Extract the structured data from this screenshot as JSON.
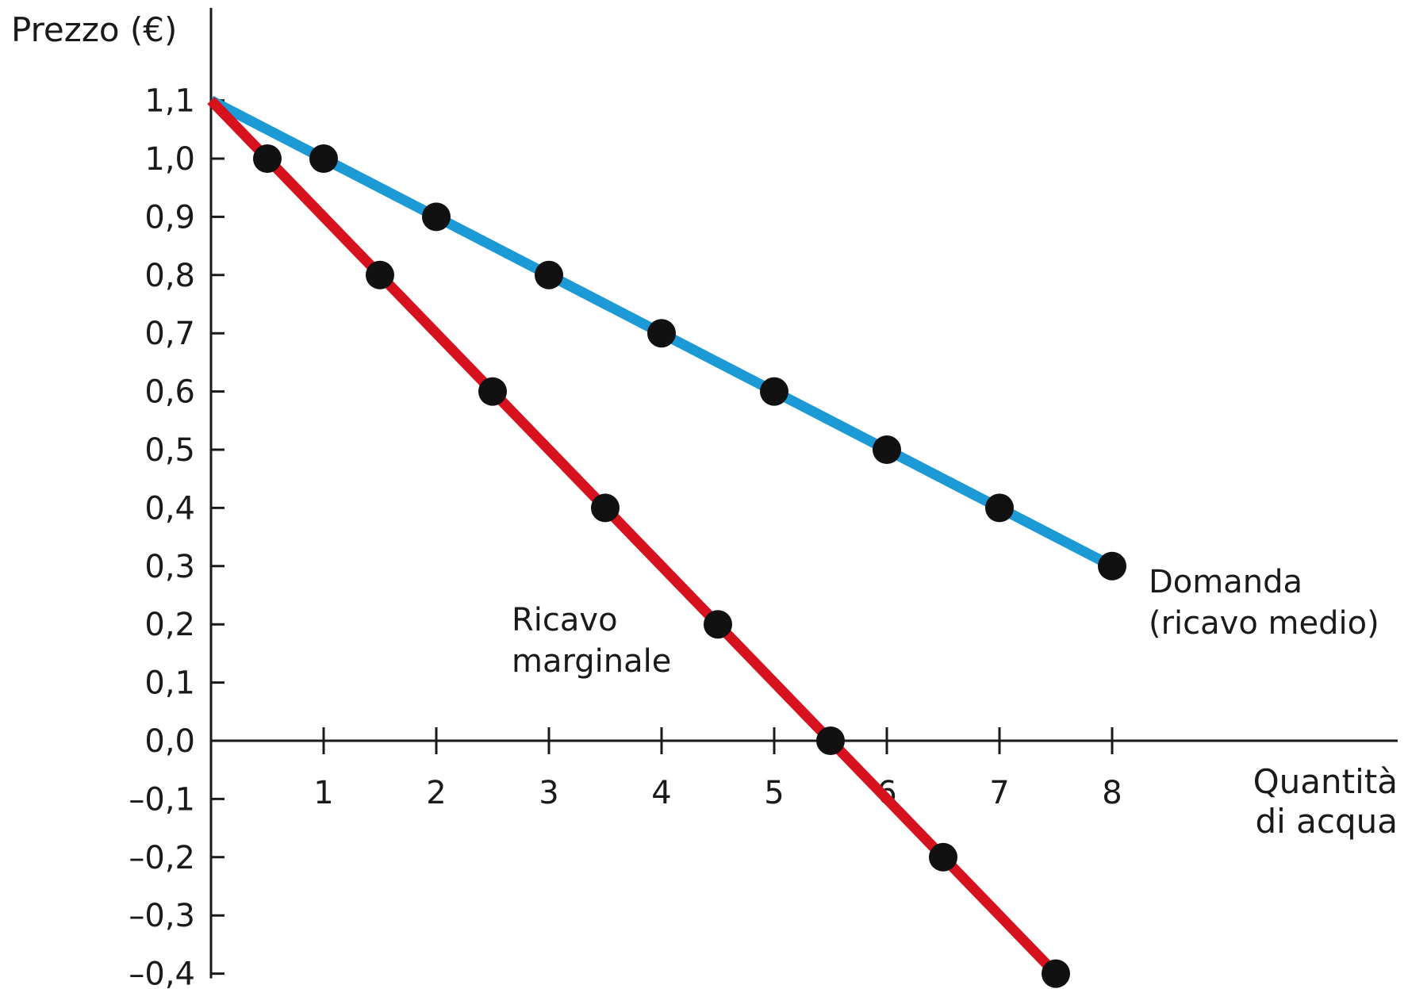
{
  "chart_data": {
    "type": "line",
    "ylabel": "Prezzo (€)",
    "xlabel": "Quantità\ndi acqua",
    "xlim": [
      0,
      10.5
    ],
    "ylim": [
      -0.4,
      1.1
    ],
    "x_ticks": [
      1,
      2,
      3,
      4,
      5,
      6,
      7,
      8
    ],
    "x_tick_labels": [
      "1",
      "2",
      "3",
      "4",
      "5",
      "6",
      "7",
      "8"
    ],
    "y_ticks": [
      1.1,
      1.0,
      0.9,
      0.8,
      0.7,
      0.6,
      0.5,
      0.4,
      0.3,
      0.2,
      0.1,
      0.0,
      -0.1,
      -0.2,
      -0.3,
      -0.4
    ],
    "y_tick_labels": [
      "1,1",
      "1,0",
      "0,9",
      "0,8",
      "0,7",
      "0,6",
      "0,5",
      "0,4",
      "0,3",
      "0,2",
      "0,1",
      "0,0",
      "–0,1",
      "–0,2",
      "–0,3",
      "–0,4"
    ],
    "grid": false,
    "series": [
      {
        "name": "Domanda\n(ricavo medio)",
        "color": "#1b9ad6",
        "line": [
          [
            0,
            1.1
          ],
          [
            8,
            0.3
          ]
        ],
        "points": [
          [
            1,
            1.0
          ],
          [
            2,
            0.9
          ],
          [
            3,
            0.8
          ],
          [
            4,
            0.7
          ],
          [
            5,
            0.6
          ],
          [
            6,
            0.5
          ],
          [
            7,
            0.4
          ],
          [
            8,
            0.3
          ]
        ]
      },
      {
        "name": "Ricavo\nmarginale",
        "color": "#d7121f",
        "line": [
          [
            0,
            1.1
          ],
          [
            7.5,
            -0.4
          ]
        ],
        "points": [
          [
            0.5,
            1.0
          ],
          [
            1.5,
            0.8
          ],
          [
            2.5,
            0.6
          ],
          [
            3.5,
            0.4
          ],
          [
            4.5,
            0.2
          ],
          [
            5.5,
            0.0
          ],
          [
            6.5,
            -0.2
          ],
          [
            7.5,
            -0.4
          ]
        ]
      }
    ]
  }
}
